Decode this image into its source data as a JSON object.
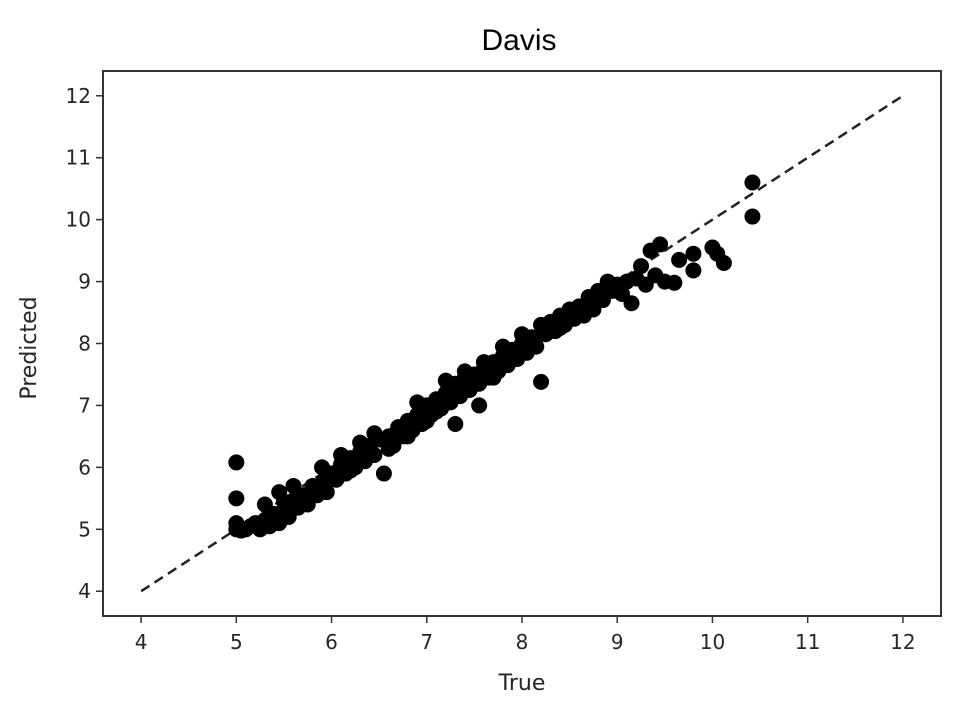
{
  "chart_data": {
    "type": "scatter",
    "title": "Davis",
    "xlabel": "True",
    "ylabel": "Predicted",
    "xlim": [
      3.6,
      12.4
    ],
    "ylim": [
      3.6,
      12.4
    ],
    "xticks": [
      "4",
      "5",
      "6",
      "7",
      "8",
      "9",
      "10",
      "11",
      "12"
    ],
    "yticks": [
      "4",
      "5",
      "6",
      "7",
      "8",
      "9",
      "10",
      "11",
      "12"
    ],
    "grid": false,
    "reference_line": {
      "style": "dashed",
      "x": [
        4,
        12
      ],
      "y": [
        4,
        12
      ]
    },
    "marker_color": "#000000",
    "points": [
      [
        5.0,
        6.08
      ],
      [
        5.0,
        5.5
      ],
      [
        5.0,
        5.1
      ],
      [
        5.0,
        5.0
      ],
      [
        5.05,
        4.98
      ],
      [
        5.1,
        5.0
      ],
      [
        5.15,
        5.05
      ],
      [
        5.2,
        5.1
      ],
      [
        5.25,
        5.0
      ],
      [
        5.3,
        5.15
      ],
      [
        5.35,
        5.05
      ],
      [
        5.4,
        5.25
      ],
      [
        5.45,
        5.1
      ],
      [
        5.45,
        5.6
      ],
      [
        5.5,
        5.3
      ],
      [
        5.55,
        5.2
      ],
      [
        5.6,
        5.45
      ],
      [
        5.65,
        5.35
      ],
      [
        5.7,
        5.55
      ],
      [
        5.75,
        5.4
      ],
      [
        5.8,
        5.7
      ],
      [
        5.85,
        5.55
      ],
      [
        5.9,
        5.75
      ],
      [
        5.95,
        5.6
      ],
      [
        6.0,
        5.9
      ],
      [
        6.05,
        5.8
      ],
      [
        6.1,
        6.05
      ],
      [
        6.15,
        5.9
      ],
      [
        6.2,
        6.15
      ],
      [
        6.25,
        6.0
      ],
      [
        6.3,
        6.25
      ],
      [
        6.35,
        6.1
      ],
      [
        6.4,
        6.35
      ],
      [
        6.45,
        6.2
      ],
      [
        6.5,
        6.45
      ],
      [
        6.55,
        5.9
      ],
      [
        6.6,
        6.5
      ],
      [
        6.65,
        6.35
      ],
      [
        6.7,
        6.65
      ],
      [
        6.75,
        6.5
      ],
      [
        6.8,
        6.75
      ],
      [
        6.85,
        6.6
      ],
      [
        6.9,
        6.85
      ],
      [
        6.95,
        6.7
      ],
      [
        7.0,
        7.0
      ],
      [
        7.05,
        6.85
      ],
      [
        7.1,
        7.1
      ],
      [
        7.15,
        6.95
      ],
      [
        7.2,
        7.2
      ],
      [
        7.25,
        7.05
      ],
      [
        7.3,
        7.35
      ],
      [
        7.35,
        7.15
      ],
      [
        7.4,
        7.45
      ],
      [
        7.45,
        7.25
      ],
      [
        7.5,
        7.5
      ],
      [
        7.55,
        7.35
      ],
      [
        7.6,
        7.6
      ],
      [
        7.65,
        7.45
      ],
      [
        7.7,
        7.7
      ],
      [
        7.75,
        7.55
      ],
      [
        7.8,
        7.8
      ],
      [
        7.85,
        7.65
      ],
      [
        7.9,
        7.9
      ],
      [
        7.95,
        7.75
      ],
      [
        8.0,
        8.0
      ],
      [
        8.05,
        7.85
      ],
      [
        8.1,
        8.1
      ],
      [
        8.15,
        7.95
      ],
      [
        8.2,
        7.38
      ],
      [
        8.25,
        8.15
      ],
      [
        8.3,
        8.35
      ],
      [
        8.35,
        8.2
      ],
      [
        8.4,
        8.45
      ],
      [
        8.45,
        8.3
      ],
      [
        8.5,
        8.55
      ],
      [
        8.55,
        8.4
      ],
      [
        8.6,
        8.6
      ],
      [
        8.65,
        8.45
      ],
      [
        8.7,
        8.75
      ],
      [
        8.75,
        8.55
      ],
      [
        8.8,
        8.85
      ],
      [
        8.85,
        8.7
      ],
      [
        8.9,
        9.0
      ],
      [
        8.95,
        8.85
      ],
      [
        9.0,
        8.95
      ],
      [
        9.05,
        8.8
      ],
      [
        9.1,
        9.0
      ],
      [
        9.15,
        8.65
      ],
      [
        9.2,
        9.05
      ],
      [
        9.25,
        9.25
      ],
      [
        9.3,
        8.95
      ],
      [
        9.35,
        9.5
      ],
      [
        9.4,
        9.1
      ],
      [
        9.45,
        9.6
      ],
      [
        9.5,
        9.0
      ],
      [
        9.6,
        8.98
      ],
      [
        9.65,
        9.35
      ],
      [
        9.8,
        9.45
      ],
      [
        9.8,
        9.18
      ],
      [
        10.0,
        9.55
      ],
      [
        10.05,
        9.45
      ],
      [
        10.12,
        9.3
      ],
      [
        10.42,
        10.6
      ],
      [
        10.42,
        10.05
      ],
      [
        6.6,
        6.3
      ],
      [
        6.45,
        6.55
      ],
      [
        7.3,
        6.7
      ],
      [
        7.55,
        7.0
      ],
      [
        6.3,
        6.4
      ],
      [
        5.9,
        6.0
      ],
      [
        6.8,
        6.5
      ],
      [
        7.0,
        6.75
      ],
      [
        7.2,
        7.4
      ],
      [
        7.6,
        7.7
      ],
      [
        8.0,
        8.15
      ],
      [
        8.4,
        8.25
      ],
      [
        5.6,
        5.7
      ],
      [
        5.3,
        5.4
      ],
      [
        6.1,
        6.2
      ],
      [
        6.9,
        7.05
      ],
      [
        7.4,
        7.55
      ],
      [
        7.8,
        7.95
      ],
      [
        8.2,
        8.3
      ],
      [
        8.6,
        8.5
      ],
      [
        5.5,
        5.45
      ],
      [
        6.2,
        5.95
      ],
      [
        6.7,
        6.55
      ],
      [
        7.1,
        6.9
      ],
      [
        7.7,
        7.45
      ]
    ]
  }
}
